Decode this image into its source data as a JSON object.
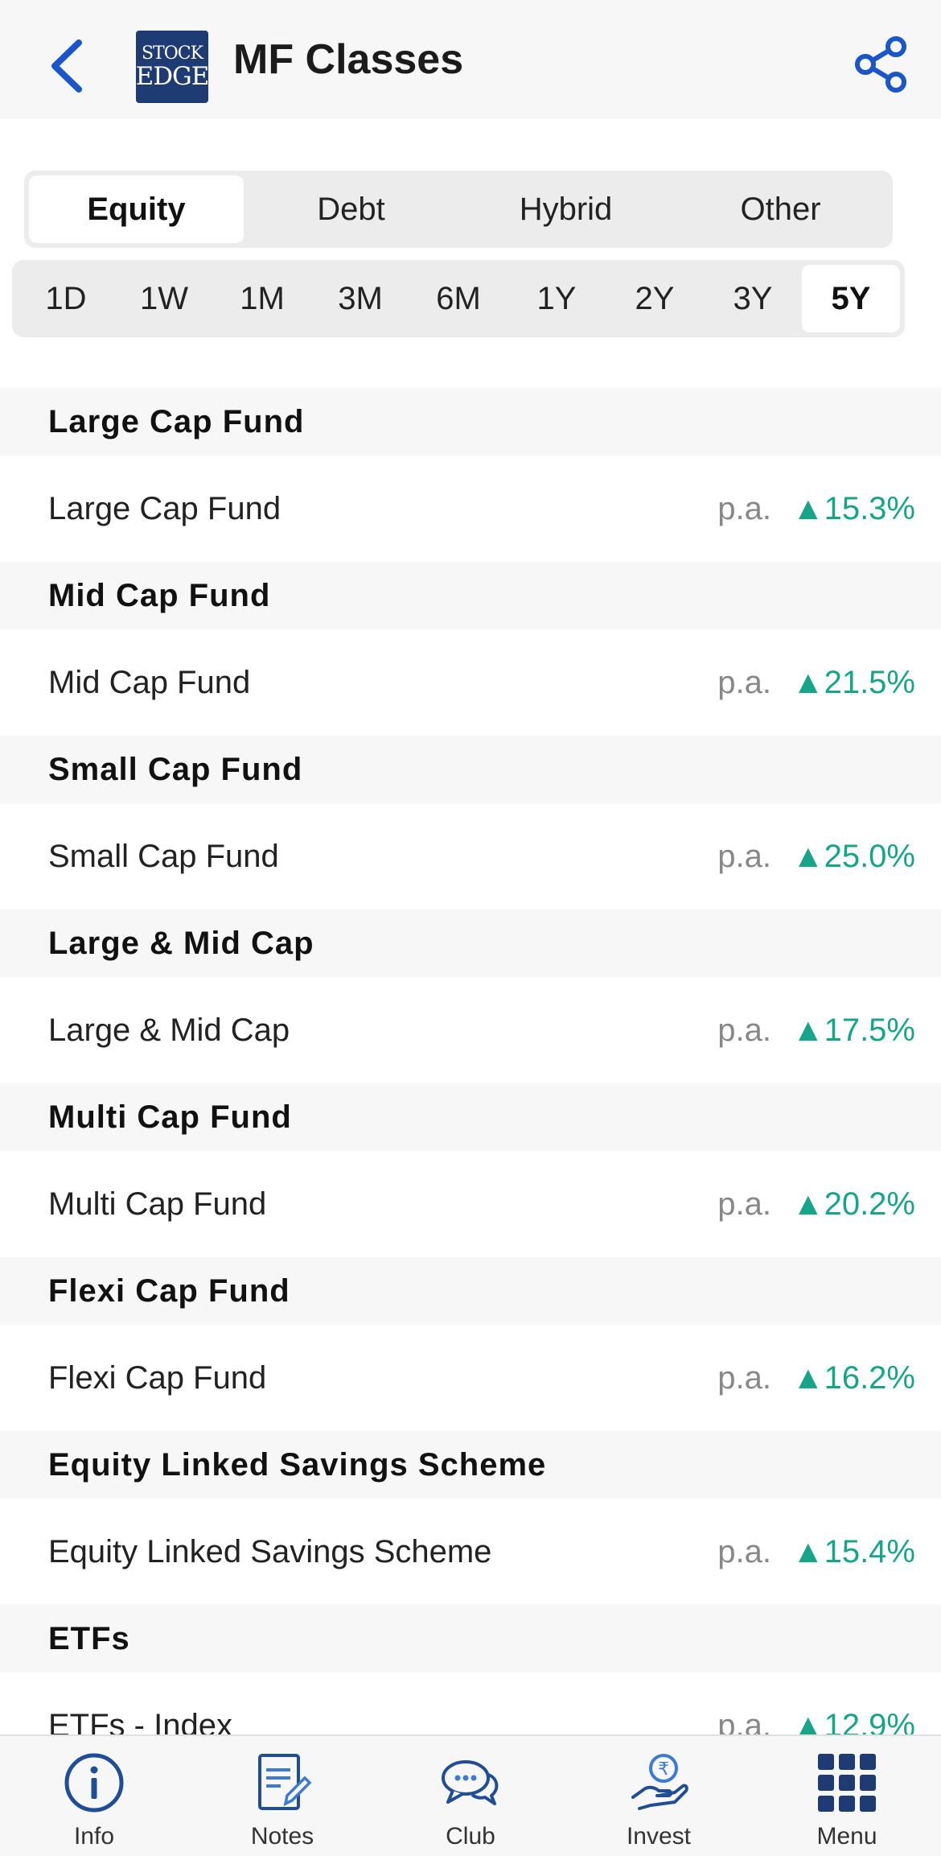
{
  "header": {
    "title": "MF Classes",
    "logo_line1": "STOCK",
    "logo_line2": "EDGE"
  },
  "colors": {
    "accent": "#1a56c9",
    "positive": "#17a589",
    "brand": "#1f3b73"
  },
  "categories": [
    {
      "label": "Equity",
      "active": true
    },
    {
      "label": "Debt"
    },
    {
      "label": "Hybrid"
    },
    {
      "label": "Other"
    }
  ],
  "periods": [
    {
      "label": "1D"
    },
    {
      "label": "1W"
    },
    {
      "label": "1M"
    },
    {
      "label": "3M"
    },
    {
      "label": "6M"
    },
    {
      "label": "1Y"
    },
    {
      "label": "2Y"
    },
    {
      "label": "3Y"
    },
    {
      "label": "5Y",
      "active": true
    }
  ],
  "funds": [
    {
      "section": "Large Cap Fund",
      "name": "Large Cap Fund",
      "pa": "p.a.",
      "ret": "▲15.3%"
    },
    {
      "section": "Mid Cap Fund",
      "name": "Mid Cap Fund",
      "pa": "p.a.",
      "ret": "▲21.5%"
    },
    {
      "section": "Small Cap Fund",
      "name": "Small Cap Fund",
      "pa": "p.a.",
      "ret": "▲25.0%"
    },
    {
      "section": "Large & Mid Cap",
      "name": "Large & Mid Cap",
      "pa": "p.a.",
      "ret": "▲17.5%"
    },
    {
      "section": "Multi Cap Fund",
      "name": "Multi Cap Fund",
      "pa": "p.a.",
      "ret": "▲20.2%"
    },
    {
      "section": "Flexi Cap Fund",
      "name": "Flexi Cap Fund",
      "pa": "p.a.",
      "ret": "▲16.2%"
    },
    {
      "section": "Equity Linked Savings Scheme",
      "name": "Equity Linked Savings Scheme",
      "pa": "p.a.",
      "ret": "▲15.4%"
    },
    {
      "section": "ETFs",
      "name": "ETFs - Index",
      "pa": "p.a.",
      "ret": "▲12.9%"
    }
  ],
  "nav": [
    {
      "label": "Info",
      "icon": "info-icon"
    },
    {
      "label": "Notes",
      "icon": "notes-icon"
    },
    {
      "label": "Club",
      "icon": "chat-icon"
    },
    {
      "label": "Invest",
      "icon": "rupee-hand-icon"
    },
    {
      "label": "Menu",
      "icon": "grid-icon"
    }
  ]
}
